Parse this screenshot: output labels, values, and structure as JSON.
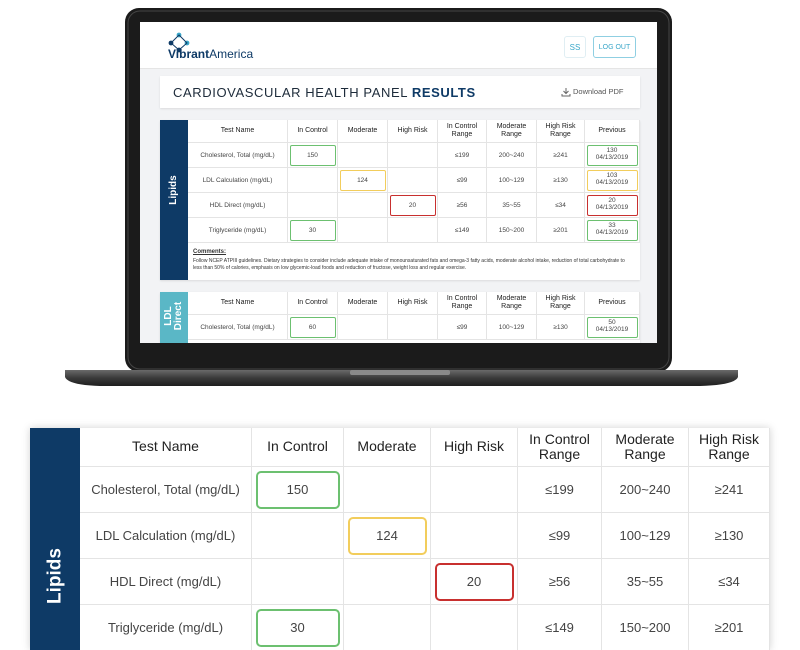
{
  "header": {
    "logo_brand": "Vibrant",
    "logo_suffix": "America",
    "user_initials": "SS",
    "logout": "LOG OUT"
  },
  "panel": {
    "title": "CARDIOVASCULAR HEALTH PANEL",
    "title_emphasis": "RESULTS",
    "download": "Download PDF"
  },
  "columns": [
    "Test Name",
    "In Control",
    "Moderate",
    "High Risk",
    "In Control Range",
    "Moderate Range",
    "High Risk Range",
    "Previous"
  ],
  "highlight_colors": [
    "#6cc070",
    "#f2cd5c",
    "#c8302f"
  ],
  "sections": [
    {
      "label": "Lipids",
      "color": "#0e3a66",
      "rows": [
        [
          "Cholesterol, Total (mg/dL)",
          150,
          null,
          null,
          "≤199",
          "200~240",
          "≥241",
          130,
          "04/13/2019"
        ],
        [
          "LDL Calculation (mg/dL)",
          null,
          124,
          null,
          "≤99",
          "100~129",
          "≥130",
          103,
          "04/13/2019"
        ],
        [
          "HDL Direct (mg/dL)",
          null,
          null,
          20,
          "≥56",
          "35~55",
          "≤34",
          20,
          "04/13/2019"
        ],
        [
          "Triglyceride (mg/dL)",
          30,
          null,
          null,
          "≤149",
          "150~200",
          "≥201",
          33,
          "04/13/2019"
        ]
      ],
      "comments_label": "Comments:",
      "comments": "Follow NCEP ATPIII guidelines. Dietary strategies to consider include adequate intake of monounsaturated fats and omega-3 fatty acids, moderate alcohol intake, reduction of total carbohydrate to less than 50% of calories, emphasis on low glycemic-load foods and reduction of fructose, weight loss and regular exercise."
    },
    {
      "label": "LDL Direct",
      "color": "#5ab7c6",
      "rows": [
        [
          "Cholesterol, Total (mg/dL)",
          60,
          null,
          null,
          "≤99",
          "100~129",
          "≥130",
          50,
          "04/13/2019"
        ]
      ]
    }
  ]
}
